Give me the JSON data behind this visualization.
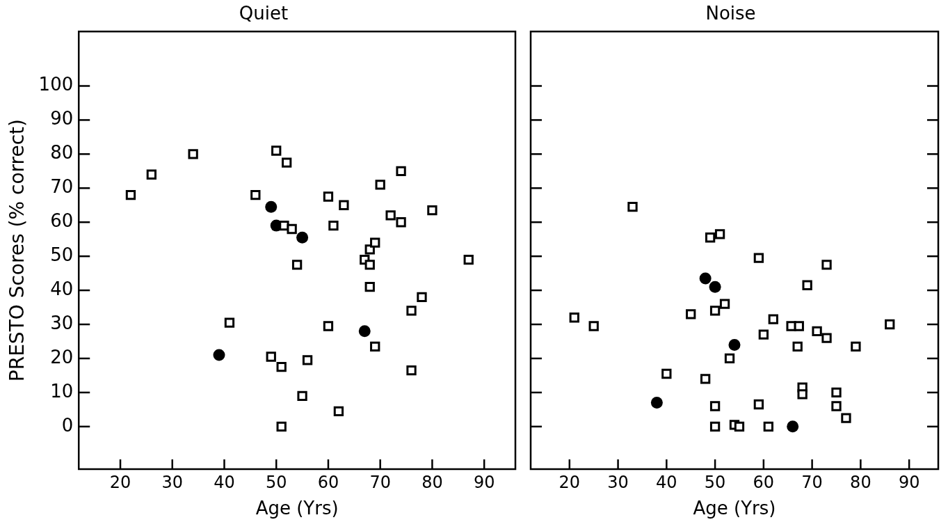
{
  "chart_data": [
    {
      "type": "scatter",
      "title": "Quiet",
      "xlabel": "Age (Yrs)",
      "ylabel": "PRESTO Scores (% correct)",
      "xlim": [
        12,
        96
      ],
      "ylim": [
        -12.5,
        116
      ],
      "xticks": [
        20,
        30,
        40,
        50,
        60,
        70,
        80,
        90
      ],
      "yticks": [
        0,
        10,
        20,
        30,
        40,
        50,
        60,
        70,
        80,
        90,
        100
      ],
      "grid": false,
      "legend": false,
      "series": [
        {
          "color": "#000000",
          "marker": "square",
          "x": [
            22,
            26,
            34,
            46,
            50,
            52,
            60,
            63,
            74,
            70,
            72,
            74,
            80,
            51.5,
            53,
            54,
            61,
            67,
            68,
            68,
            69,
            68,
            87,
            78,
            76,
            41,
            60,
            69,
            49,
            51,
            56,
            76,
            55,
            62,
            51
          ],
          "values": [
            68,
            74,
            80,
            68,
            81,
            77.5,
            67.5,
            65,
            75,
            71,
            62,
            60,
            63.5,
            59,
            58,
            47.5,
            59,
            49,
            52,
            47.5,
            54,
            41,
            49,
            38,
            34,
            30.5,
            29.5,
            23.5,
            20.5,
            17.5,
            19.5,
            16.5,
            9,
            4.5,
            0
          ]
        },
        {
          "color": "#000000",
          "marker": "circle",
          "x": [
            49,
            50,
            55,
            39,
            67
          ],
          "values": [
            64.5,
            59,
            55.5,
            21,
            28
          ]
        }
      ]
    },
    {
      "type": "scatter",
      "title": "Noise",
      "xlabel": "Age (Yrs)",
      "xlim": [
        12,
        96
      ],
      "ylim": [
        -12.5,
        116
      ],
      "xticks": [
        20,
        30,
        40,
        50,
        60,
        70,
        80,
        90
      ],
      "yticks": [
        0,
        10,
        20,
        30,
        40,
        50,
        60,
        70,
        80,
        90,
        100
      ],
      "tick_labels": "x",
      "grid": false,
      "legend": false,
      "series": [
        {
          "color": "#000000",
          "marker": "square",
          "x": [
            21,
            25,
            33,
            49,
            51,
            59,
            73,
            69,
            45,
            50,
            52,
            62,
            60,
            65.7,
            67.3,
            71,
            73,
            86,
            67,
            79,
            53,
            40,
            48,
            68,
            68,
            75,
            50,
            59,
            75,
            77,
            50,
            54,
            55,
            61
          ],
          "values": [
            32,
            29.5,
            64.5,
            55.5,
            56.5,
            49.5,
            47.5,
            41.5,
            33,
            34,
            36,
            31.5,
            27,
            29.5,
            29.5,
            28,
            26,
            30,
            23.5,
            23.5,
            20,
            15.5,
            14,
            11.5,
            9.5,
            10,
            6,
            6.5,
            6,
            2.5,
            0,
            0.5,
            0,
            0
          ]
        },
        {
          "color": "#000000",
          "marker": "circle",
          "x": [
            48,
            50,
            54,
            38,
            66
          ],
          "values": [
            43.5,
            41,
            24,
            7,
            0
          ]
        }
      ]
    }
  ]
}
